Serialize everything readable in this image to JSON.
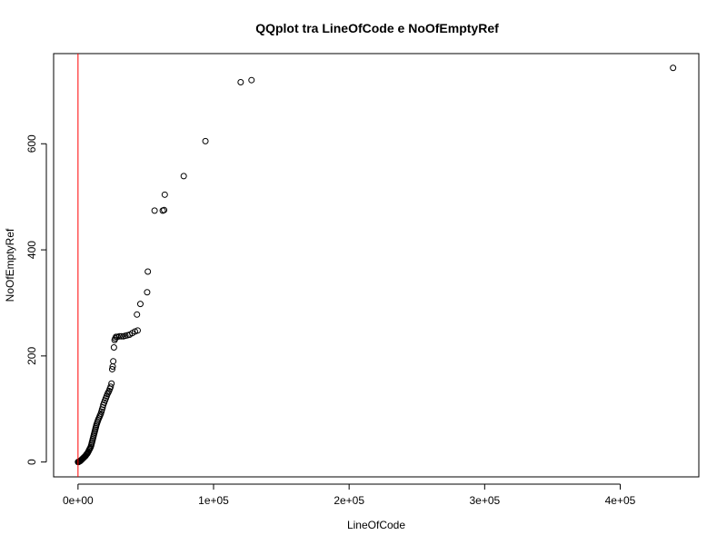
{
  "chart_data": {
    "type": "scatter",
    "title": "QQplot tra LineOfCode e NoOfEmptyRef",
    "xlabel": "LineOfCode",
    "ylabel": "NoOfEmptyRef",
    "xlim": [
      -18000,
      458000
    ],
    "ylim": [
      -28,
      770
    ],
    "x_ticks": [
      {
        "value": 0,
        "label": "0e+00"
      },
      {
        "value": 100000,
        "label": "1e+05"
      },
      {
        "value": 200000,
        "label": "2e+05"
      },
      {
        "value": 300000,
        "label": "3e+05"
      },
      {
        "value": 400000,
        "label": "4e+05"
      }
    ],
    "y_ticks": [
      {
        "value": 0,
        "label": "0"
      },
      {
        "value": 200,
        "label": "200"
      },
      {
        "value": 400,
        "label": "400"
      },
      {
        "value": 600,
        "label": "600"
      }
    ],
    "reference_line": {
      "type": "vertical",
      "x": 0,
      "color": "#ff0000"
    },
    "points": [
      [
        0,
        0
      ],
      [
        200,
        0
      ],
      [
        400,
        0
      ],
      [
        700,
        1
      ],
      [
        1000,
        1
      ],
      [
        1300,
        2
      ],
      [
        1700,
        2
      ],
      [
        2100,
        3
      ],
      [
        2500,
        4
      ],
      [
        2900,
        5
      ],
      [
        3300,
        6
      ],
      [
        3700,
        7
      ],
      [
        4100,
        8
      ],
      [
        4500,
        9
      ],
      [
        4900,
        10
      ],
      [
        5300,
        11
      ],
      [
        5700,
        12
      ],
      [
        6100,
        14
      ],
      [
        6500,
        15
      ],
      [
        6900,
        16
      ],
      [
        7300,
        18
      ],
      [
        7700,
        20
      ],
      [
        8100,
        22
      ],
      [
        8500,
        24
      ],
      [
        8900,
        26
      ],
      [
        9300,
        28
      ],
      [
        9700,
        31
      ],
      [
        10000,
        34
      ],
      [
        10300,
        37
      ],
      [
        10600,
        40
      ],
      [
        10900,
        43
      ],
      [
        11200,
        46
      ],
      [
        11500,
        49
      ],
      [
        11800,
        52
      ],
      [
        12100,
        55
      ],
      [
        12400,
        58
      ],
      [
        12700,
        61
      ],
      [
        13000,
        64
      ],
      [
        13300,
        67
      ],
      [
        13600,
        70
      ],
      [
        14000,
        73
      ],
      [
        14400,
        76
      ],
      [
        14800,
        79
      ],
      [
        15300,
        82
      ],
      [
        15800,
        85
      ],
      [
        16300,
        88
      ],
      [
        16800,
        91
      ],
      [
        17300,
        95
      ],
      [
        17700,
        99
      ],
      [
        18200,
        103
      ],
      [
        18700,
        108
      ],
      [
        19300,
        112
      ],
      [
        19900,
        116
      ],
      [
        20500,
        120
      ],
      [
        21100,
        124
      ],
      [
        21700,
        128
      ],
      [
        22300,
        131
      ],
      [
        22900,
        134
      ],
      [
        23500,
        138
      ],
      [
        24100,
        142
      ],
      [
        24700,
        148
      ],
      [
        25200,
        175
      ],
      [
        25600,
        180
      ],
      [
        26000,
        190
      ],
      [
        26500,
        216
      ],
      [
        27000,
        230
      ],
      [
        27500,
        233
      ],
      [
        28000,
        236
      ],
      [
        29000,
        236
      ],
      [
        30500,
        237
      ],
      [
        32000,
        237
      ],
      [
        33500,
        237
      ],
      [
        35000,
        238
      ],
      [
        36500,
        239
      ],
      [
        38000,
        240
      ],
      [
        40000,
        243
      ],
      [
        42000,
        246
      ],
      [
        44000,
        248
      ],
      [
        43500,
        278
      ],
      [
        46000,
        298
      ],
      [
        51000,
        320
      ],
      [
        51500,
        359
      ],
      [
        56500,
        474
      ],
      [
        62500,
        474
      ],
      [
        63500,
        475
      ],
      [
        64000,
        504
      ],
      [
        78000,
        539
      ],
      [
        94000,
        605
      ],
      [
        120000,
        716
      ],
      [
        128000,
        720
      ],
      [
        439000,
        743
      ]
    ]
  }
}
